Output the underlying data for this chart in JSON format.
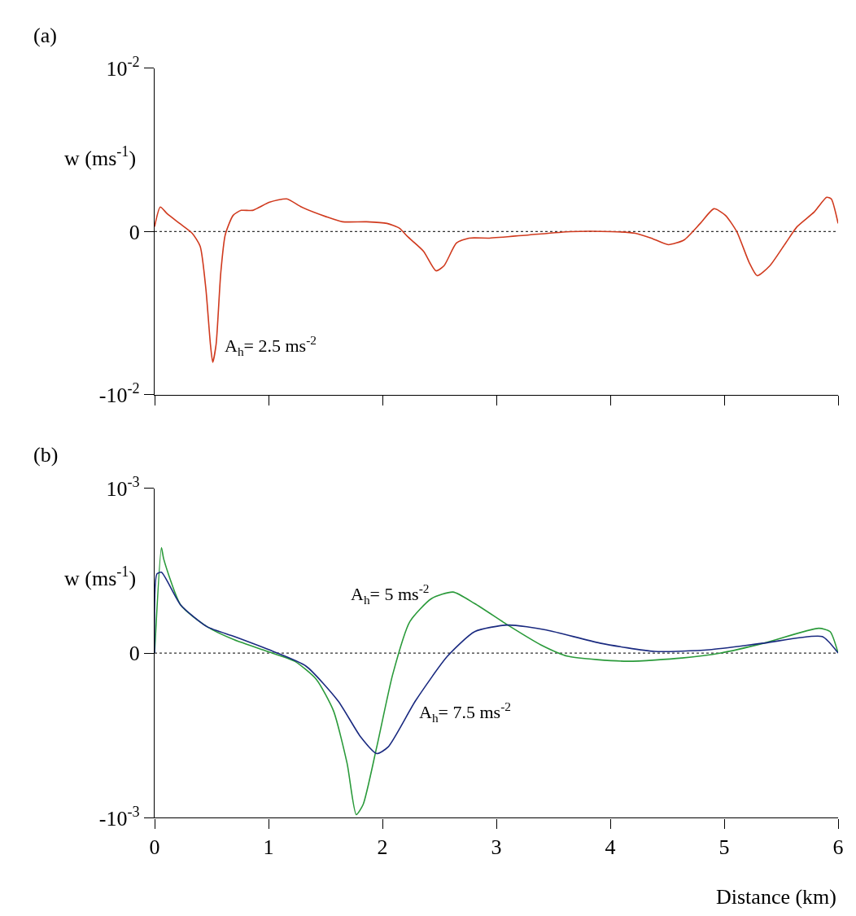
{
  "chart_data": [
    {
      "type": "line",
      "title": "(a)",
      "ylabel": "w (ms$^{-1}$)",
      "tick_labels": "y",
      "xlim": [
        0,
        6
      ],
      "xticks": [
        0,
        1,
        2,
        3,
        4,
        5,
        6
      ],
      "ylim": [
        -0.01,
        0.01
      ],
      "yticks": [
        {
          "value": -0.01,
          "label": "-10$^{-2}$"
        },
        0,
        {
          "value": 0.01,
          "label": "10$^{-2}$"
        }
      ],
      "ref_lines": [
        {
          "axis": "y",
          "value": 0,
          "label": null,
          "color": "#333333",
          "line_style": "dotted"
        }
      ],
      "annotations": [
        "A$_{h}$= 2.5 ms$^{-2}$"
      ],
      "series": [
        {
          "color": "#d03a1e",
          "x": [
            0,
            0.05,
            0.11,
            0.22,
            0.33,
            0.4,
            0.45,
            0.49,
            0.51,
            0.54,
            0.58,
            0.62,
            0.69,
            0.76,
            0.86,
            1.01,
            1.16,
            1.29,
            1.51,
            1.65,
            1.86,
            2.04,
            2.15,
            2.22,
            2.36,
            2.47,
            2.54,
            2.65,
            2.76,
            2.94,
            3.29,
            3.65,
            4.01,
            4.22,
            4.36,
            4.51,
            4.65,
            4.79,
            4.91,
            5.01,
            5.11,
            5.22,
            5.29,
            5.4,
            5.54,
            5.64,
            5.79,
            5.9,
            5.94,
            6.0
          ],
          "values": [
            0.0003,
            0.0015,
            0.0011,
            0.0005,
            -0.0001,
            -0.0009,
            -0.0035,
            -0.0069,
            -0.008,
            -0.0069,
            -0.0026,
            -0.0002,
            0.001,
            0.0013,
            0.0013,
            0.0018,
            0.002,
            0.0015,
            0.0009,
            0.0006,
            0.0006,
            0.0005,
            0.0002,
            -0.0003,
            -0.0012,
            -0.0024,
            -0.0021,
            -0.0007,
            -0.0004,
            -0.0004,
            -0.0002,
            0.0,
            0.0,
            -0.0001,
            -0.0004,
            -0.0008,
            -0.0005,
            0.0005,
            0.0014,
            0.001,
            0.0,
            -0.0019,
            -0.0027,
            -0.0021,
            -0.0007,
            0.0003,
            0.0012,
            0.0021,
            0.002,
            0.0005
          ]
        }
      ]
    },
    {
      "type": "line",
      "title": "(b)",
      "ylabel": "w (ms$^{-1}$)",
      "xlabel": "Distance (km)",
      "xlim": [
        0,
        6
      ],
      "xticks": [
        0,
        1,
        2,
        3,
        4,
        5,
        6
      ],
      "ylim": [
        -0.001,
        0.001
      ],
      "yticks": [
        {
          "value": -0.001,
          "label": "-10$^{-3}$"
        },
        0,
        {
          "value": 0.001,
          "label": "10$^{-3}$"
        }
      ],
      "ref_lines": [
        {
          "axis": "y",
          "value": 0,
          "label": null,
          "color": "#333333",
          "line_style": "dotted"
        }
      ],
      "annotations": [
        "A$_{h}$= 5 ms$^{-2}$",
        "A$_{h}$= 7.5 ms$^{-2}$"
      ],
      "series": [
        {
          "color": "#2a9a3a",
          "x": [
            0,
            0.06,
            0.08,
            0.23,
            0.46,
            0.7,
            0.99,
            1.23,
            1.42,
            1.57,
            1.69,
            1.77,
            1.83,
            1.95,
            2.09,
            2.24,
            2.43,
            2.62,
            2.81,
            3.1,
            3.39,
            3.63,
            4.15,
            4.63,
            4.97,
            5.35,
            5.83,
            5.93,
            6.0
          ],
          "values": [
            0,
            0.00064,
            0.00057,
            0.00029,
            0.00016,
            8e-05,
            1e-05,
            -5e-05,
            -0.00016,
            -0.00035,
            -0.00067,
            -0.00098,
            -0.00092,
            -0.00057,
            -0.00013,
            0.00019,
            0.00033,
            0.00037,
            0.0003,
            0.00017,
            5e-05,
            -2e-05,
            -5e-05,
            -3e-05,
            0,
            6e-05,
            0.00015,
            0.00013,
            0
          ]
        },
        {
          "color": "#1a2a80",
          "x": [
            0,
            0.02,
            0.06,
            0.23,
            0.46,
            0.7,
            1.04,
            1.33,
            1.61,
            1.81,
            1.95,
            2.05,
            2.29,
            2.57,
            2.81,
            3.1,
            3.44,
            3.91,
            4.39,
            4.87,
            5.35,
            5.86,
            6.0
          ],
          "values": [
            0,
            0.00048,
            0.00049,
            0.00029,
            0.00016,
            0.0001,
            1e-05,
            -8e-05,
            -0.00029,
            -0.00051,
            -0.00061,
            -0.00057,
            -0.00029,
            -2e-05,
            0.00013,
            0.00017,
            0.00014,
            6e-05,
            1e-05,
            2e-05,
            6e-05,
            0.0001,
            0
          ]
        }
      ]
    }
  ]
}
